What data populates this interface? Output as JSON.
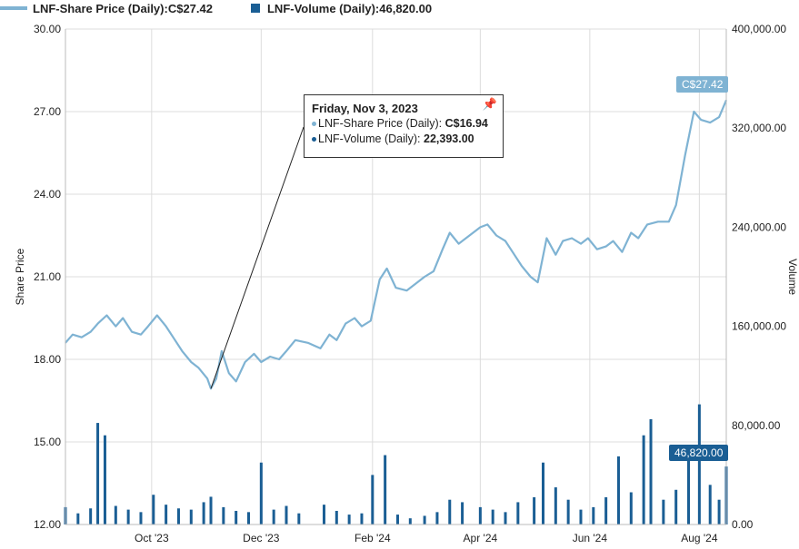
{
  "legend": {
    "price_name": "LNF-Share Price (Daily): ",
    "price_value": "C$27.42",
    "volume_name": "LNF-Volume (Daily): ",
    "volume_value": "46,820.00"
  },
  "colors": {
    "price_line": "#7fb3d3",
    "volume_bar": "#1a5e94",
    "grid": "#dcdcdc",
    "callout_price": "#7fb3d3",
    "callout_volume": "#1a5e94"
  },
  "tooltip": {
    "date": "Friday, Nov 3, 2023",
    "price_label": "LNF-Share Price (Daily): ",
    "price_value": "C$16.94",
    "volume_label": "LNF-Volume (Daily): ",
    "volume_value": "22,393.00",
    "pin_icon": "pin-icon"
  },
  "callouts": {
    "price": "C$27.42",
    "volume": "46,820.00"
  },
  "chart_data": {
    "type": "line",
    "title": "",
    "ylabel": "Share Price",
    "y2label": "Volume",
    "ylim": [
      12,
      30
    ],
    "y2lim": [
      0,
      400000
    ],
    "yticks": [
      "30.00",
      "27.00",
      "24.00",
      "21.00",
      "18.00",
      "15.00",
      "12.00"
    ],
    "y2ticks": [
      "400,000.00",
      "320,000.00",
      "240,000.00",
      "160,000.00",
      "80,000.00",
      "0.00"
    ],
    "x_labels": [
      "Oct '23",
      "Dec '23",
      "Feb '24",
      "Apr '24",
      "Jun '24",
      "Aug '24"
    ],
    "x_label_dates": [
      "2023-10-01",
      "2023-12-01",
      "2024-02-01",
      "2024-04-01",
      "2024-06-01",
      "2024-08-01"
    ],
    "x_range": [
      "2023-08-14",
      "2024-08-16"
    ],
    "grid": true,
    "series": [
      {
        "name": "LNF-Share Price (Daily)",
        "points": [
          [
            "2023-08-14",
            18.6
          ],
          [
            "2023-08-18",
            18.9
          ],
          [
            "2023-08-23",
            18.8
          ],
          [
            "2023-08-28",
            19.0
          ],
          [
            "2023-09-01",
            19.3
          ],
          [
            "2023-09-06",
            19.6
          ],
          [
            "2023-09-11",
            19.2
          ],
          [
            "2023-09-15",
            19.5
          ],
          [
            "2023-09-20",
            19.0
          ],
          [
            "2023-09-25",
            18.9
          ],
          [
            "2023-09-29",
            19.2
          ],
          [
            "2023-10-04",
            19.6
          ],
          [
            "2023-10-09",
            19.2
          ],
          [
            "2023-10-13",
            18.8
          ],
          [
            "2023-10-18",
            18.3
          ],
          [
            "2023-10-23",
            17.9
          ],
          [
            "2023-10-27",
            17.7
          ],
          [
            "2023-11-01",
            17.3
          ],
          [
            "2023-11-03",
            16.94
          ],
          [
            "2023-11-06",
            17.3
          ],
          [
            "2023-11-09",
            18.3
          ],
          [
            "2023-11-13",
            17.5
          ],
          [
            "2023-11-17",
            17.2
          ],
          [
            "2023-11-22",
            17.9
          ],
          [
            "2023-11-27",
            18.2
          ],
          [
            "2023-12-01",
            17.9
          ],
          [
            "2023-12-06",
            18.1
          ],
          [
            "2023-12-11",
            18.0
          ],
          [
            "2023-12-15",
            18.3
          ],
          [
            "2023-12-20",
            18.7
          ],
          [
            "2023-12-27",
            18.6
          ],
          [
            "2024-01-03",
            18.4
          ],
          [
            "2024-01-08",
            18.9
          ],
          [
            "2024-01-12",
            18.7
          ],
          [
            "2024-01-17",
            19.3
          ],
          [
            "2024-01-22",
            19.5
          ],
          [
            "2024-01-26",
            19.2
          ],
          [
            "2024-01-31",
            19.4
          ],
          [
            "2024-02-05",
            20.9
          ],
          [
            "2024-02-09",
            21.3
          ],
          [
            "2024-02-14",
            20.6
          ],
          [
            "2024-02-20",
            20.5
          ],
          [
            "2024-02-26",
            20.8
          ],
          [
            "2024-03-01",
            21.0
          ],
          [
            "2024-03-06",
            21.2
          ],
          [
            "2024-03-11",
            22.0
          ],
          [
            "2024-03-15",
            22.6
          ],
          [
            "2024-03-20",
            22.2
          ],
          [
            "2024-03-26",
            22.5
          ],
          [
            "2024-04-01",
            22.8
          ],
          [
            "2024-04-05",
            22.9
          ],
          [
            "2024-04-10",
            22.5
          ],
          [
            "2024-04-15",
            22.3
          ],
          [
            "2024-04-19",
            21.9
          ],
          [
            "2024-04-24",
            21.4
          ],
          [
            "2024-04-29",
            21.0
          ],
          [
            "2024-05-03",
            20.8
          ],
          [
            "2024-05-08",
            22.4
          ],
          [
            "2024-05-13",
            21.8
          ],
          [
            "2024-05-17",
            22.3
          ],
          [
            "2024-05-22",
            22.4
          ],
          [
            "2024-05-27",
            22.2
          ],
          [
            "2024-05-31",
            22.4
          ],
          [
            "2024-06-05",
            22.0
          ],
          [
            "2024-06-10",
            22.1
          ],
          [
            "2024-06-14",
            22.3
          ],
          [
            "2024-06-19",
            21.9
          ],
          [
            "2024-06-24",
            22.6
          ],
          [
            "2024-06-28",
            22.4
          ],
          [
            "2024-07-03",
            22.9
          ],
          [
            "2024-07-09",
            23.0
          ],
          [
            "2024-07-15",
            23.0
          ],
          [
            "2024-07-19",
            23.6
          ],
          [
            "2024-07-24",
            25.4
          ],
          [
            "2024-07-29",
            27.0
          ],
          [
            "2024-08-02",
            26.7
          ],
          [
            "2024-08-07",
            26.6
          ],
          [
            "2024-08-12",
            26.8
          ],
          [
            "2024-08-16",
            27.42
          ]
        ]
      },
      {
        "name": "LNF-Volume (Daily)",
        "points": [
          [
            "2023-08-14",
            14000
          ],
          [
            "2023-08-21",
            9000
          ],
          [
            "2023-08-28",
            13000
          ],
          [
            "2023-09-01",
            82000
          ],
          [
            "2023-09-05",
            72000
          ],
          [
            "2023-09-11",
            15000
          ],
          [
            "2023-09-18",
            12000
          ],
          [
            "2023-09-25",
            10000
          ],
          [
            "2023-10-02",
            24000
          ],
          [
            "2023-10-09",
            16000
          ],
          [
            "2023-10-16",
            13000
          ],
          [
            "2023-10-23",
            12000
          ],
          [
            "2023-10-30",
            18000
          ],
          [
            "2023-11-03",
            22393
          ],
          [
            "2023-11-10",
            14000
          ],
          [
            "2023-11-17",
            11000
          ],
          [
            "2023-11-24",
            10000
          ],
          [
            "2023-12-01",
            50000
          ],
          [
            "2023-12-08",
            12000
          ],
          [
            "2023-12-15",
            15000
          ],
          [
            "2023-12-22",
            9000
          ],
          [
            "2024-01-05",
            16000
          ],
          [
            "2024-01-12",
            11000
          ],
          [
            "2024-01-19",
            8000
          ],
          [
            "2024-01-26",
            9000
          ],
          [
            "2024-02-01",
            40000
          ],
          [
            "2024-02-08",
            56000
          ],
          [
            "2024-02-15",
            8000
          ],
          [
            "2024-02-22",
            5000
          ],
          [
            "2024-03-01",
            7000
          ],
          [
            "2024-03-08",
            10000
          ],
          [
            "2024-03-15",
            20000
          ],
          [
            "2024-03-22",
            18000
          ],
          [
            "2024-04-01",
            14000
          ],
          [
            "2024-04-08",
            12000
          ],
          [
            "2024-04-15",
            10000
          ],
          [
            "2024-04-22",
            18000
          ],
          [
            "2024-05-01",
            22000
          ],
          [
            "2024-05-06",
            50000
          ],
          [
            "2024-05-13",
            30000
          ],
          [
            "2024-05-20",
            20000
          ],
          [
            "2024-05-27",
            12000
          ],
          [
            "2024-06-03",
            14000
          ],
          [
            "2024-06-10",
            22000
          ],
          [
            "2024-06-17",
            55000
          ],
          [
            "2024-06-24",
            26000
          ],
          [
            "2024-07-01",
            72000
          ],
          [
            "2024-07-05",
            85000
          ],
          [
            "2024-07-12",
            20000
          ],
          [
            "2024-07-19",
            28000
          ],
          [
            "2024-07-26",
            60000
          ],
          [
            "2024-08-01",
            97000
          ],
          [
            "2024-08-07",
            32000
          ],
          [
            "2024-08-12",
            20000
          ],
          [
            "2024-08-16",
            46820
          ]
        ]
      }
    ]
  }
}
